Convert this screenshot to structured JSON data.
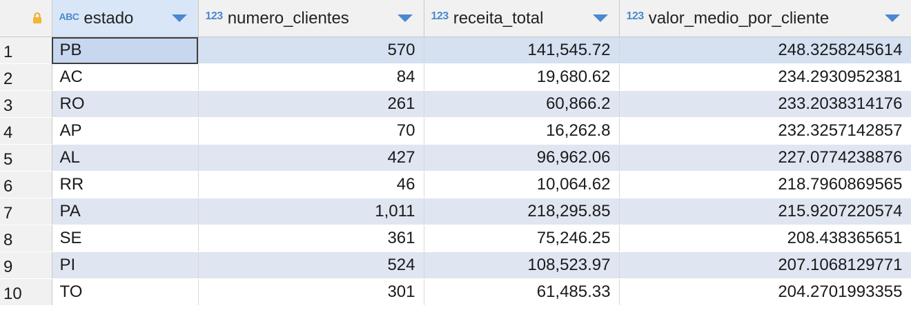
{
  "columns": [
    {
      "type": "ABC",
      "name": "estado"
    },
    {
      "type": "123",
      "name": "numero_clientes"
    },
    {
      "type": "123",
      "name": "receita_total"
    },
    {
      "type": "123",
      "name": "valor_medio_por_cliente"
    }
  ],
  "rows": [
    {
      "index": "1",
      "estado": "PB",
      "numero_clientes": "570",
      "receita_total": "141,545.72",
      "valor_medio_por_cliente": "248.3258245614"
    },
    {
      "index": "2",
      "estado": "AC",
      "numero_clientes": "84",
      "receita_total": "19,680.62",
      "valor_medio_por_cliente": "234.2930952381"
    },
    {
      "index": "3",
      "estado": "RO",
      "numero_clientes": "261",
      "receita_total": "60,866.2",
      "valor_medio_por_cliente": "233.2038314176"
    },
    {
      "index": "4",
      "estado": "AP",
      "numero_clientes": "70",
      "receita_total": "16,262.8",
      "valor_medio_por_cliente": "232.3257142857"
    },
    {
      "index": "5",
      "estado": "AL",
      "numero_clientes": "427",
      "receita_total": "96,962.06",
      "valor_medio_por_cliente": "227.0774238876"
    },
    {
      "index": "6",
      "estado": "RR",
      "numero_clientes": "46",
      "receita_total": "10,064.62",
      "valor_medio_por_cliente": "218.7960869565"
    },
    {
      "index": "7",
      "estado": "PA",
      "numero_clientes": "1,011",
      "receita_total": "218,295.85",
      "valor_medio_por_cliente": "215.9207220574"
    },
    {
      "index": "8",
      "estado": "SE",
      "numero_clientes": "361",
      "receita_total": "75,246.25",
      "valor_medio_por_cliente": "208.438365651"
    },
    {
      "index": "9",
      "estado": "PI",
      "numero_clientes": "524",
      "receita_total": "108,523.97",
      "valor_medio_por_cliente": "207.1068129771"
    },
    {
      "index": "10",
      "estado": "TO",
      "numero_clientes": "301",
      "receita_total": "61,485.33",
      "valor_medio_por_cliente": "204.2701993355"
    }
  ],
  "colors": {
    "accent": "#4a88cf",
    "lock": "#f0b429",
    "row_alt": "#dfe6f1",
    "header_bg": "#f1f1f1"
  },
  "icons": {
    "corner": "lock-icon",
    "sort": "sort-arrow-down-icon"
  }
}
